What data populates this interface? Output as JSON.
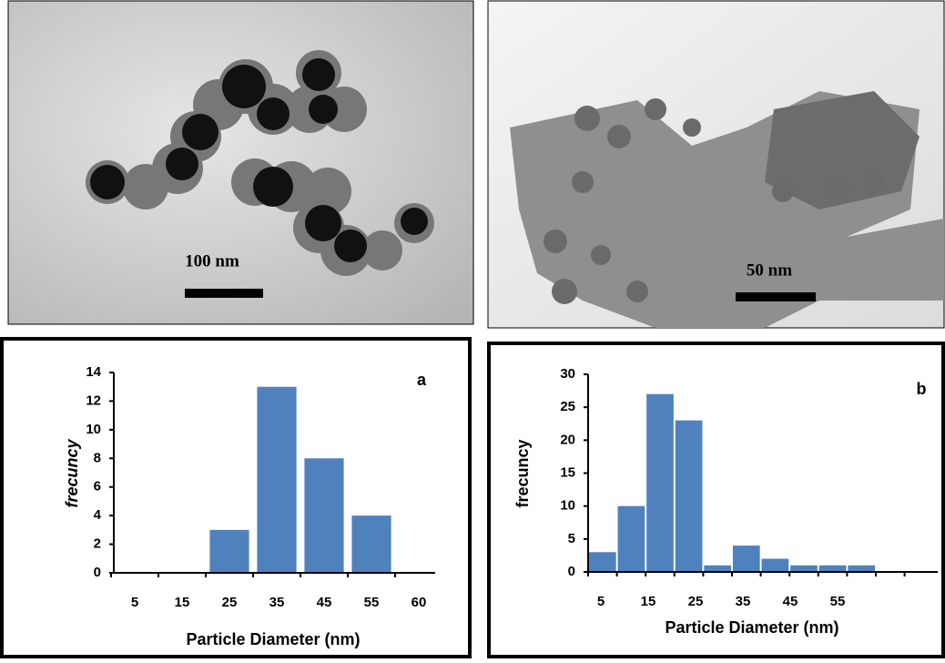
{
  "images": [
    {
      "scale_label": "100 nm"
    },
    {
      "scale_label": "50 nm"
    }
  ],
  "chart_data": [
    {
      "type": "bar",
      "panel_label": "a",
      "x_label": "Particle Diameter (nm)",
      "y_label": "frecuncy",
      "y_label_italic": true,
      "categories": [
        "5",
        "15",
        "25",
        "35",
        "45",
        "55",
        "60"
      ],
      "values": [
        0,
        0,
        3,
        13,
        8,
        4,
        null
      ],
      "color": "#4f81bd",
      "ylim": [
        0,
        14
      ],
      "yticks": [
        0,
        2,
        4,
        6,
        8,
        10,
        12,
        14
      ]
    },
    {
      "type": "bar",
      "panel_label": "b",
      "x_label": "Particle Diameter (nm)",
      "y_label": "frecuncy",
      "y_label_italic": false,
      "categories": [
        "5",
        null,
        "15",
        null,
        "25",
        null,
        "35",
        null,
        "45",
        null,
        "55",
        null
      ],
      "values": [
        3,
        10,
        27,
        23,
        1,
        4,
        2,
        1,
        1,
        1,
        0,
        0
      ],
      "color": "#4f81bd",
      "ylim": [
        0,
        30
      ],
      "yticks": [
        0,
        5,
        10,
        15,
        20,
        25,
        30
      ]
    }
  ]
}
